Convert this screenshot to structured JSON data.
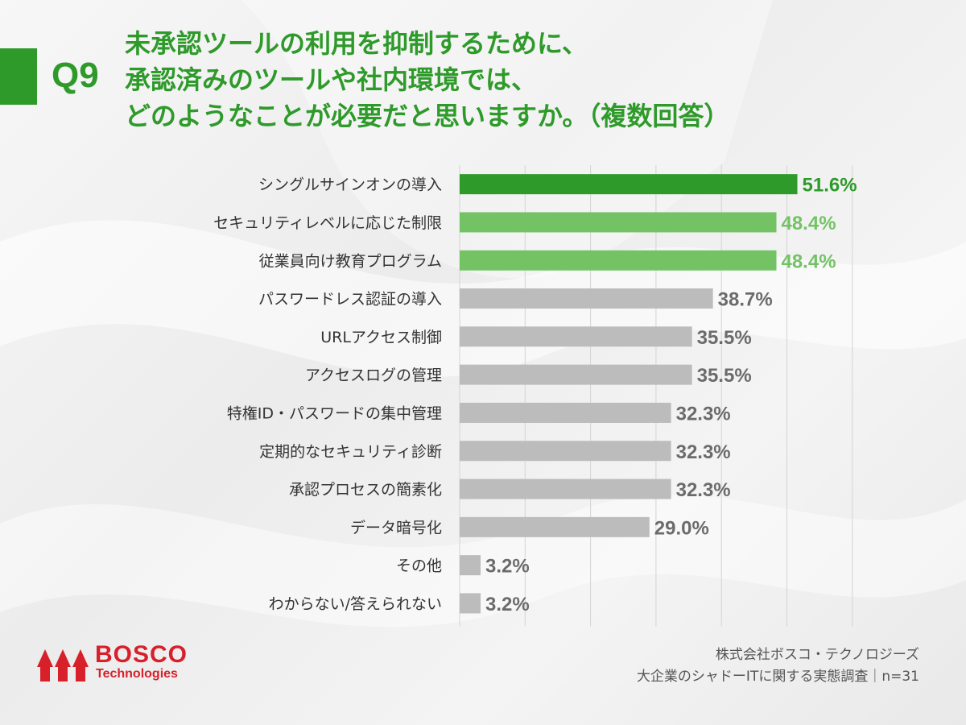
{
  "question": {
    "number": "Q9",
    "title_lines": [
      "未承認ツールの利用を抑制するために、",
      "承認済みのツールや社内環境では、",
      "どのようなことが必要だと思いますか。（複数回答）"
    ]
  },
  "colors": {
    "accent": "#2e9a2a",
    "top_bar": "#2e9a2a",
    "second_bar": "#73c365",
    "other_bar": "#bcbcbc",
    "other_label": "#6b6b6b",
    "brand_red": "#d7202a"
  },
  "chart_data": {
    "type": "bar",
    "orientation": "horizontal",
    "title": "未承認ツールの利用を抑制するために、承認済みのツールや社内環境では、どのようなことが必要だと思いますか。（複数回答）",
    "categories": [
      "シングルサインオンの導入",
      "セキュリティレベルに応じた制限",
      "従業員向け教育プログラム",
      "パスワードレス認証の導入",
      "URLアクセス制御",
      "アクセスログの管理",
      "特権ID・パスワードの集中管理",
      "定期的なセキュリティ診断",
      "承認プロセスの簡素化",
      "データ暗号化",
      "その他",
      "わからない/答えられない"
    ],
    "values": [
      51.6,
      48.4,
      48.4,
      38.7,
      35.5,
      35.5,
      32.3,
      32.3,
      32.3,
      29.0,
      3.2,
      3.2
    ],
    "value_labels": [
      "51.6%",
      "48.4%",
      "48.4%",
      "38.7%",
      "35.5%",
      "35.5%",
      "32.3%",
      "32.3%",
      "32.3%",
      "29.0%",
      "3.2%",
      "3.2%"
    ],
    "highlight": [
      "top",
      "second",
      "second",
      "other",
      "other",
      "other",
      "other",
      "other",
      "other",
      "other",
      "other",
      "other"
    ],
    "xlim": [
      0,
      60
    ],
    "grid": true
  },
  "logo": {
    "name": "BOSCO",
    "sub": "Technologies"
  },
  "footer": {
    "company": "株式会社ボスコ・テクノロジーズ",
    "survey": "大企業のシャドーITに関する実態調査｜n=31"
  }
}
